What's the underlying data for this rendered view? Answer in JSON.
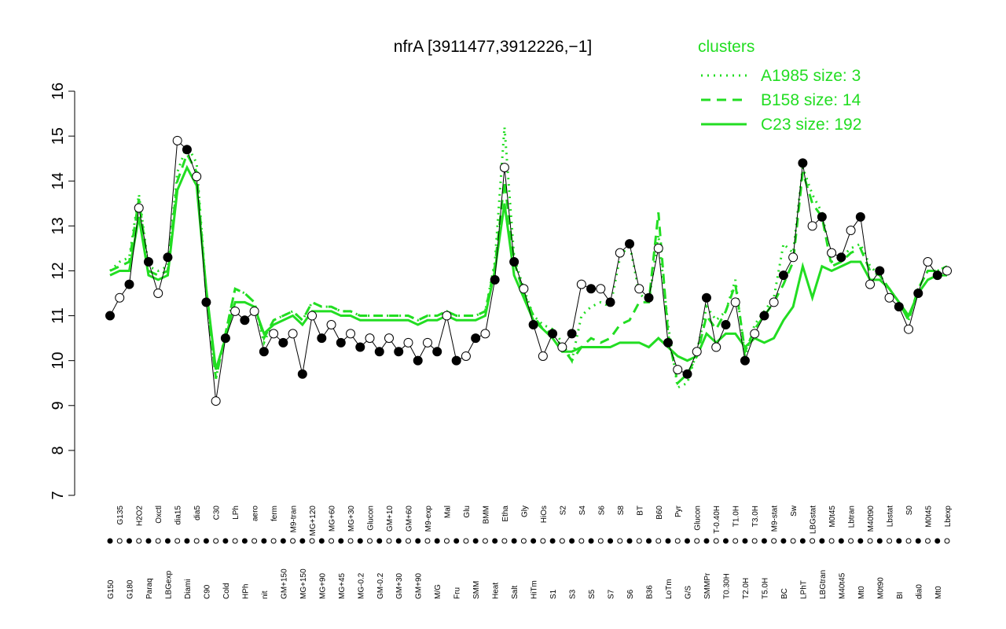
{
  "chart_data": {
    "type": "line",
    "title": "nfrA [3911477,3912226,−1]",
    "legend_title": "clusters",
    "categories": [
      "G150",
      "G135",
      "G180",
      "H2O2",
      "Paraq",
      "Oxctl",
      "LBGexp",
      "dia15",
      "Diami",
      "dia5",
      "C90",
      "C30",
      "Cold",
      "LPh",
      "HPh",
      "aero",
      "nit",
      "ferm",
      "GM+150",
      "M9-tran",
      "MG+150",
      "MG+120",
      "MG+90",
      "MG+60",
      "MG+45",
      "MG+30",
      "MG-0.2",
      "Glucon",
      "GM-0.2",
      "GM+10",
      "GM+30",
      "GM+60",
      "GM+90",
      "M9-exp",
      "M/G",
      "Mal",
      "Fru",
      "Glu",
      "SMM",
      "BMM",
      "Heat",
      "Etha",
      "Salt",
      "Gly",
      "HiTm",
      "HiOs",
      "S1",
      "S2",
      "S3",
      "S4",
      "S5",
      "S6",
      "S7",
      "S8",
      "S6",
      "BT",
      "B36",
      "B60",
      "LoTm",
      "Pyr",
      "G/S",
      "Glucon",
      "SMMPr",
      "T-0.40H",
      "T0.30H",
      "T1.0H",
      "T2.0H",
      "T3.0H",
      "T5.0H",
      "M9-stat",
      "BC",
      "Sw",
      "LPhT",
      "LBGstat",
      "LBGtran",
      "M0t45",
      "M40t45",
      "Lbtran",
      "Mt0",
      "M40t90",
      "M0t90",
      "Lbstat",
      "BI",
      "S0",
      "dia0",
      "M0t45",
      "Mt0",
      "Lbexp"
    ],
    "series": [
      {
        "name": "expression",
        "color": "#000000",
        "style": "points",
        "values": [
          11.0,
          11.4,
          11.7,
          13.4,
          12.2,
          11.5,
          12.3,
          14.9,
          14.7,
          14.1,
          11.3,
          9.1,
          10.5,
          11.1,
          10.9,
          11.1,
          10.2,
          10.6,
          10.4,
          10.6,
          9.7,
          11.0,
          10.5,
          10.8,
          10.4,
          10.6,
          10.3,
          10.5,
          10.2,
          10.5,
          10.2,
          10.4,
          10.0,
          10.4,
          10.2,
          11.0,
          10.0,
          10.1,
          10.5,
          10.6,
          11.8,
          14.3,
          12.2,
          11.6,
          10.8,
          10.1,
          10.6,
          10.3,
          10.6,
          11.7,
          11.6,
          11.6,
          11.3,
          12.4,
          12.6,
          11.6,
          11.4,
          12.5,
          10.4,
          9.8,
          9.7,
          10.2,
          11.4,
          10.3,
          10.8,
          11.3,
          10.0,
          10.6,
          11.0,
          11.3,
          11.9,
          12.3,
          14.4,
          13.0,
          13.2,
          12.4,
          12.3,
          12.9,
          13.2,
          11.7,
          12.0,
          11.4,
          11.2,
          10.7,
          11.5,
          12.2,
          11.9,
          12.0
        ]
      },
      {
        "name": "A1985 size: 3",
        "color": "#22dd22",
        "style": "dotted",
        "values": [
          12.0,
          12.2,
          12.3,
          13.7,
          12.1,
          12.0,
          12.1,
          14.2,
          14.8,
          14.4,
          11.5,
          9.6,
          10.6,
          11.6,
          11.5,
          11.3,
          10.4,
          10.9,
          11.0,
          11.1,
          10.9,
          11.3,
          11.2,
          11.2,
          11.1,
          11.1,
          11.0,
          11.0,
          11.0,
          11.0,
          11.0,
          11.0,
          10.9,
          11.0,
          11.0,
          11.1,
          11.0,
          11.0,
          11.0,
          11.1,
          12.2,
          15.2,
          12.3,
          11.6,
          11.0,
          10.8,
          10.7,
          10.4,
          10.0,
          11.0,
          11.2,
          11.3,
          11.2,
          12.3,
          12.6,
          11.5,
          11.3,
          12.8,
          10.8,
          9.4,
          9.5,
          10.2,
          11.2,
          10.9,
          11.1,
          11.8,
          10.1,
          10.8,
          11.1,
          11.4,
          12.6,
          12.4,
          14.3,
          13.7,
          13.3,
          12.2,
          12.3,
          12.5,
          12.6,
          12.1,
          11.9,
          11.6,
          11.3,
          10.9,
          11.6,
          12.0,
          12.0,
          12.1
        ]
      },
      {
        "name": "B158 size: 14",
        "color": "#22dd22",
        "style": "dashed",
        "values": [
          12.0,
          12.1,
          12.2,
          13.6,
          12.0,
          11.9,
          12.0,
          14.0,
          14.6,
          14.2,
          11.5,
          9.6,
          10.6,
          11.6,
          11.5,
          11.3,
          10.5,
          10.9,
          11.0,
          11.1,
          10.9,
          11.3,
          11.2,
          11.2,
          11.1,
          11.1,
          11.0,
          11.0,
          11.0,
          11.0,
          11.0,
          11.0,
          10.9,
          11.0,
          11.0,
          11.1,
          11.0,
          11.0,
          11.0,
          11.1,
          12.1,
          14.0,
          12.2,
          11.5,
          11.0,
          10.7,
          10.6,
          10.3,
          10.0,
          10.3,
          10.5,
          10.4,
          10.5,
          10.8,
          10.9,
          11.3,
          11.3,
          13.3,
          10.6,
          9.5,
          9.7,
          10.1,
          11.0,
          10.7,
          11.1,
          11.7,
          10.2,
          10.7,
          11.0,
          11.3,
          11.7,
          12.2,
          14.2,
          13.5,
          13.2,
          12.1,
          12.2,
          12.4,
          12.5,
          12.0,
          11.9,
          11.6,
          11.3,
          10.9,
          11.6,
          12.0,
          12.0,
          12.1
        ]
      },
      {
        "name": "C23 size: 192",
        "color": "#22dd22",
        "style": "solid",
        "values": [
          11.9,
          12.0,
          12.0,
          13.2,
          11.9,
          11.8,
          11.9,
          13.8,
          14.3,
          13.9,
          11.6,
          9.8,
          10.5,
          11.3,
          11.3,
          11.2,
          10.6,
          10.8,
          10.9,
          11.0,
          10.8,
          11.1,
          11.1,
          11.1,
          11.0,
          11.0,
          10.9,
          10.9,
          10.9,
          10.9,
          10.9,
          10.9,
          10.8,
          10.9,
          10.9,
          11.0,
          10.9,
          10.9,
          10.9,
          11.0,
          12.0,
          13.5,
          11.9,
          11.4,
          10.9,
          10.7,
          10.5,
          10.2,
          10.2,
          10.3,
          10.3,
          10.3,
          10.3,
          10.4,
          10.4,
          10.4,
          10.3,
          10.5,
          10.3,
          10.1,
          10.0,
          10.1,
          10.6,
          10.4,
          10.6,
          10.6,
          10.3,
          10.5,
          10.4,
          10.5,
          10.9,
          11.2,
          12.1,
          11.4,
          12.1,
          12.0,
          12.1,
          12.2,
          12.2,
          11.8,
          11.8,
          11.6,
          11.3,
          11.0,
          11.5,
          11.8,
          11.9,
          11.9
        ]
      }
    ],
    "ylim": [
      7,
      16
    ],
    "yticks": [
      7,
      8,
      9,
      10,
      11,
      12,
      13,
      14,
      15,
      16
    ]
  }
}
